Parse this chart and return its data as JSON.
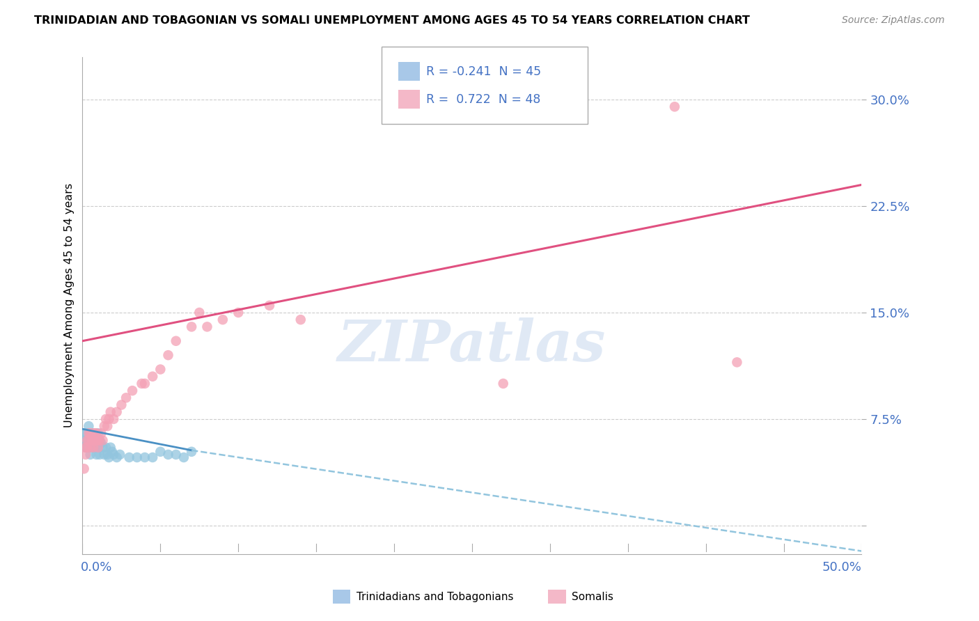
{
  "title": "TRINIDADIAN AND TOBAGONIAN VS SOMALI UNEMPLOYMENT AMONG AGES 45 TO 54 YEARS CORRELATION CHART",
  "source": "Source: ZipAtlas.com",
  "ylabel": "Unemployment Among Ages 45 to 54 years",
  "yticks": [
    0.0,
    0.075,
    0.15,
    0.225,
    0.3
  ],
  "ytick_labels": [
    "",
    "7.5%",
    "15.0%",
    "22.5%",
    "30.0%"
  ],
  "xlim": [
    0.0,
    0.5
  ],
  "ylim": [
    -0.02,
    0.33
  ],
  "watermark_text": "ZIPatlas",
  "tnd_points_x": [
    0.001,
    0.002,
    0.002,
    0.003,
    0.003,
    0.003,
    0.004,
    0.004,
    0.004,
    0.005,
    0.005,
    0.005,
    0.006,
    0.006,
    0.007,
    0.007,
    0.007,
    0.008,
    0.008,
    0.009,
    0.009,
    0.01,
    0.01,
    0.011,
    0.011,
    0.012,
    0.013,
    0.014,
    0.015,
    0.016,
    0.017,
    0.018,
    0.019,
    0.02,
    0.022,
    0.024,
    0.03,
    0.035,
    0.04,
    0.045,
    0.05,
    0.055,
    0.06,
    0.065,
    0.07
  ],
  "tnd_points_y": [
    0.065,
    0.055,
    0.06,
    0.055,
    0.065,
    0.06,
    0.06,
    0.055,
    0.07,
    0.06,
    0.065,
    0.05,
    0.06,
    0.055,
    0.055,
    0.065,
    0.06,
    0.058,
    0.055,
    0.06,
    0.05,
    0.055,
    0.065,
    0.06,
    0.05,
    0.058,
    0.055,
    0.05,
    0.055,
    0.05,
    0.048,
    0.055,
    0.052,
    0.05,
    0.048,
    0.05,
    0.048,
    0.048,
    0.048,
    0.048,
    0.052,
    0.05,
    0.05,
    0.048,
    0.052
  ],
  "som_points_x": [
    0.001,
    0.002,
    0.002,
    0.003,
    0.003,
    0.004,
    0.004,
    0.005,
    0.005,
    0.006,
    0.006,
    0.007,
    0.007,
    0.008,
    0.008,
    0.009,
    0.009,
    0.01,
    0.01,
    0.011,
    0.012,
    0.013,
    0.014,
    0.015,
    0.016,
    0.017,
    0.018,
    0.02,
    0.022,
    0.025,
    0.028,
    0.032,
    0.038,
    0.04,
    0.045,
    0.05,
    0.055,
    0.06,
    0.07,
    0.075,
    0.08,
    0.09,
    0.1,
    0.12,
    0.14,
    0.27,
    0.38,
    0.42
  ],
  "som_points_y": [
    0.04,
    0.05,
    0.055,
    0.055,
    0.06,
    0.06,
    0.065,
    0.055,
    0.065,
    0.06,
    0.065,
    0.06,
    0.055,
    0.065,
    0.06,
    0.06,
    0.065,
    0.06,
    0.055,
    0.06,
    0.065,
    0.06,
    0.07,
    0.075,
    0.07,
    0.075,
    0.08,
    0.075,
    0.08,
    0.085,
    0.09,
    0.095,
    0.1,
    0.1,
    0.105,
    0.11,
    0.12,
    0.13,
    0.14,
    0.15,
    0.14,
    0.145,
    0.15,
    0.155,
    0.145,
    0.1,
    0.295,
    0.115
  ],
  "tnd_color": "#92c5de",
  "som_color": "#f4a0b5",
  "tnd_trend_solid_color": "#4a90c4",
  "tnd_trend_dash_color": "#92c5de",
  "som_trend_color": "#e05080",
  "tnd_trend_x": [
    0.0,
    0.07,
    0.5
  ],
  "tnd_trend_y": [
    0.068,
    0.053,
    -0.018
  ],
  "som_trend_x": [
    0.0,
    0.5
  ],
  "som_trend_y": [
    0.13,
    0.24
  ],
  "legend_R1": "R = -0.241",
  "legend_N1": "N = 45",
  "legend_R2": "R =  0.722",
  "legend_N2": "N = 48",
  "legend_color1": "#a8c8e8",
  "legend_color2": "#f4b8c8",
  "label_tnd": "Trinidadians and Tobagonians",
  "label_som": "Somalis"
}
